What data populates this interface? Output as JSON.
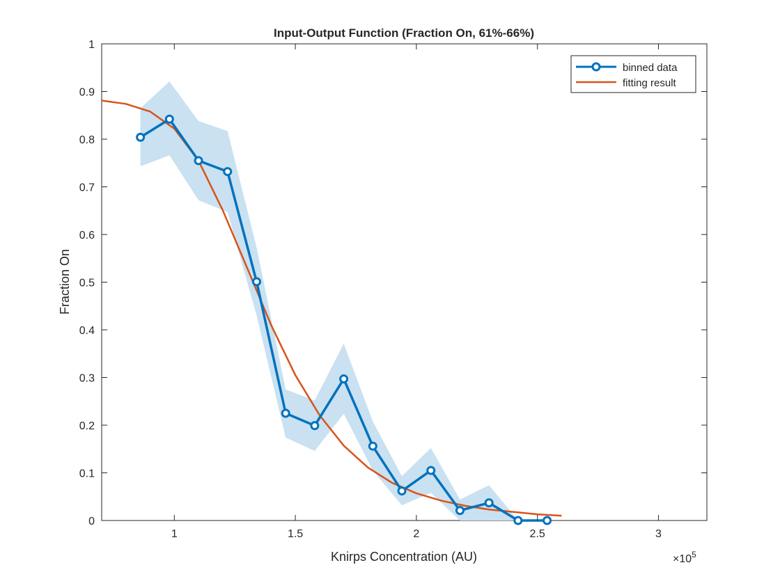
{
  "colors": {
    "data_line": "#0072BD",
    "fit_line": "#D95319",
    "band": "#c9e1f1",
    "axis": "#262626"
  },
  "chart_data": {
    "type": "line",
    "title": "Input-Output Function (Fraction On, 61%-66%)",
    "xlabel": "Knirps Concentration (AU)",
    "ylabel": "Fraction On",
    "x_exponent_label": "×10",
    "x_exponent_power": "5",
    "xlim": [
      70000,
      320000
    ],
    "ylim": [
      0,
      1
    ],
    "xticks": [
      100000,
      150000,
      200000,
      250000,
      300000
    ],
    "xtick_labels": [
      "1",
      "1.5",
      "2",
      "2.5",
      "3"
    ],
    "yticks": [
      0,
      0.1,
      0.2,
      0.3,
      0.4,
      0.5,
      0.6,
      0.7,
      0.8,
      0.9,
      1
    ],
    "ytick_labels": [
      "0",
      "0.1",
      "0.2",
      "0.3",
      "0.4",
      "0.5",
      "0.6",
      "0.7",
      "0.8",
      "0.9",
      "1"
    ],
    "grid": false,
    "legend_position": "top-right",
    "series": [
      {
        "name": "binned data",
        "style": "line-with-circle-markers",
        "x": [
          86000,
          98000,
          110000,
          122000,
          134000,
          146000,
          158000,
          170000,
          182000,
          194000,
          206000,
          218000,
          230000,
          242000,
          254000
        ],
        "y": [
          0.804,
          0.842,
          0.755,
          0.732,
          0.501,
          0.225,
          0.199,
          0.297,
          0.156,
          0.062,
          0.105,
          0.021,
          0.037,
          0.0,
          0.0
        ],
        "error_upper": [
          0.865,
          0.921,
          0.838,
          0.817,
          0.573,
          0.275,
          0.252,
          0.371,
          0.208,
          0.093,
          0.152,
          0.044,
          0.074,
          0.0,
          0.0
        ],
        "error_lower": [
          0.743,
          0.766,
          0.672,
          0.647,
          0.43,
          0.174,
          0.146,
          0.224,
          0.105,
          0.032,
          0.058,
          0.0,
          0.0,
          0.0,
          0.0
        ]
      },
      {
        "name": "fitting result",
        "style": "smooth-line",
        "x": [
          70000,
          80000,
          90000,
          100000,
          110000,
          120000,
          130000,
          140000,
          150000,
          160000,
          170000,
          180000,
          190000,
          200000,
          210000,
          220000,
          230000,
          240000,
          250000,
          260000
        ],
        "y": [
          0.881,
          0.874,
          0.858,
          0.822,
          0.755,
          0.651,
          0.531,
          0.41,
          0.305,
          0.221,
          0.157,
          0.111,
          0.079,
          0.057,
          0.042,
          0.031,
          0.023,
          0.018,
          0.013,
          0.01
        ]
      }
    ]
  }
}
